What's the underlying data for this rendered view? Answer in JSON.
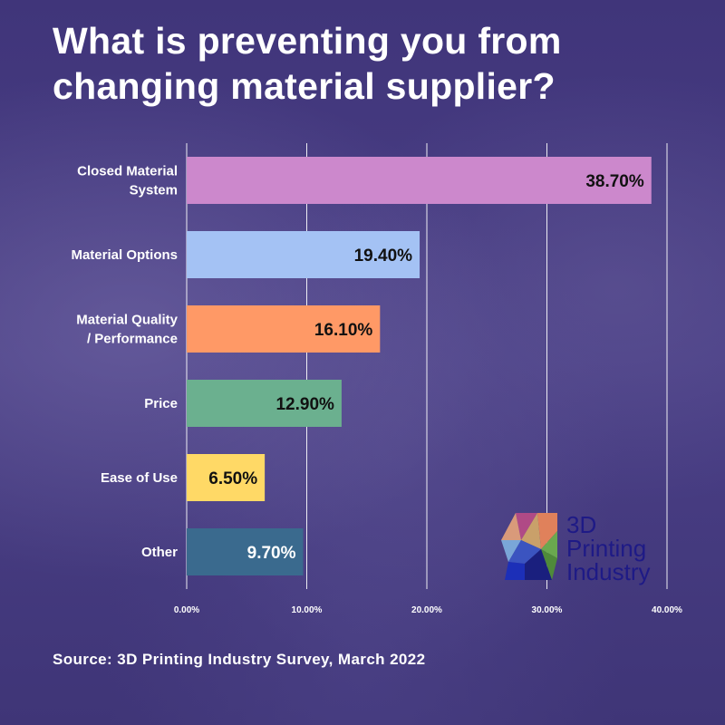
{
  "title": "What is preventing you from changing material supplier?",
  "source": "Source: 3D Printing Industry Survey, March 2022",
  "logo": {
    "icon": "3d-printing-industry-cube-logo",
    "line1": "3D",
    "line2": "Printing",
    "line3": "Industry"
  },
  "colors": {
    "background": "#3f3577",
    "value_text_dark": "#111111",
    "value_text_light": "#ffffff",
    "gridline": "#ffffff"
  },
  "chart_data": {
    "type": "bar",
    "orientation": "horizontal",
    "title": "What is preventing you from changing material supplier?",
    "xlabel": "",
    "ylabel": "",
    "xlim": [
      0,
      40
    ],
    "x_ticks": [
      "0.00%",
      "10.00%",
      "20.00%",
      "30.00%",
      "40.00%"
    ],
    "grid": true,
    "legend": "none",
    "categories": [
      [
        "Closed Material",
        "System"
      ],
      [
        "Material Options"
      ],
      [
        "Material Quality",
        "/ Performance"
      ],
      [
        "Price"
      ],
      [
        "Ease of Use"
      ],
      [
        "Other"
      ]
    ],
    "values": [
      38.7,
      19.4,
      16.1,
      12.9,
      6.5,
      9.7
    ],
    "value_labels": [
      "38.70%",
      "19.40%",
      "16.10%",
      "12.90%",
      "6.50%",
      "9.70%"
    ],
    "bar_colors": [
      "#cc88cc",
      "#a4c2f4",
      "#ff9966",
      "#6bb08f",
      "#ffd966",
      "#3a6a8e"
    ],
    "label_colors": [
      "#111111",
      "#111111",
      "#111111",
      "#111111",
      "#111111",
      "#ffffff"
    ]
  }
}
